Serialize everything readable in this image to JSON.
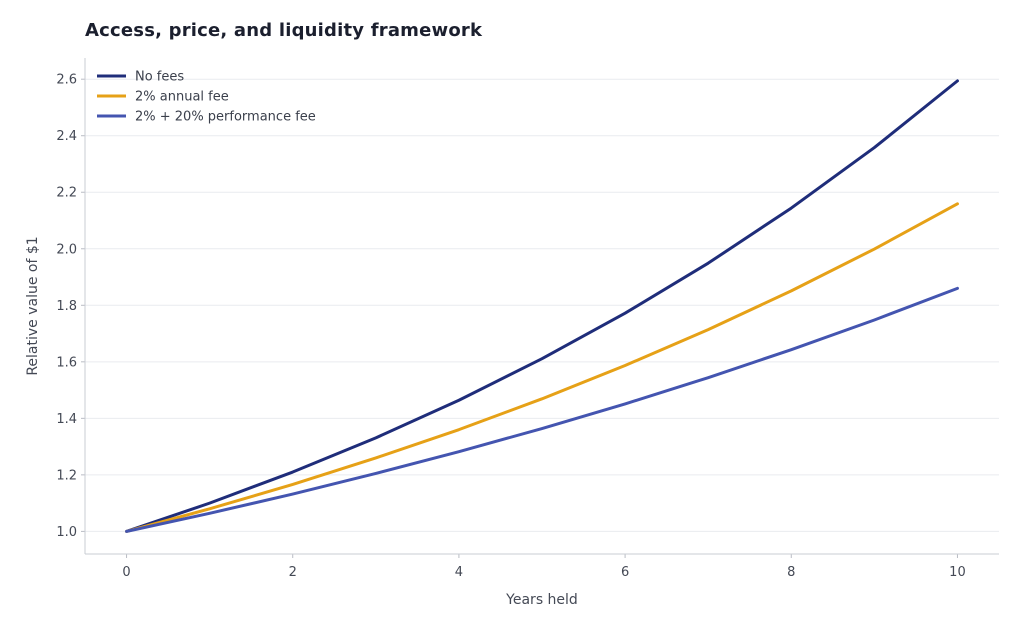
{
  "chart_data": {
    "type": "line",
    "title": "Access, price, and liquidity framework",
    "xlabel": "Years held",
    "ylabel": "Relative value of $1",
    "x": [
      0,
      1,
      2,
      3,
      4,
      5,
      6,
      7,
      8,
      9,
      10
    ],
    "xlim": [
      -0.5,
      10.5
    ],
    "ylim": [
      0.92,
      2.675
    ],
    "xticks": [
      0,
      2,
      4,
      6,
      8,
      10
    ],
    "xtick_labels": [
      "0",
      "2",
      "4",
      "6",
      "8",
      "10"
    ],
    "yticks": [
      1.0,
      1.2,
      1.4,
      1.6,
      1.8,
      2.0,
      2.2,
      2.4,
      2.6
    ],
    "ytick_labels": [
      "1.0",
      "1.2",
      "1.4",
      "1.6",
      "1.8",
      "2.0",
      "2.2",
      "2.4",
      "2.6"
    ],
    "grid": "horizontal",
    "legend_position": "top-left",
    "series": [
      {
        "name": "No fees",
        "color": "#1f2d7a",
        "values": [
          1.0,
          1.1,
          1.21,
          1.331,
          1.464,
          1.611,
          1.772,
          1.949,
          2.144,
          2.358,
          2.594
        ]
      },
      {
        "name": "2% annual fee",
        "color": "#e6a117",
        "values": [
          1.0,
          1.08,
          1.166,
          1.26,
          1.36,
          1.469,
          1.587,
          1.714,
          1.851,
          1.999,
          2.159
        ]
      },
      {
        "name": "2% + 20% performance fee",
        "color": "#4455b0",
        "values": [
          1.0,
          1.064,
          1.132,
          1.205,
          1.282,
          1.364,
          1.451,
          1.544,
          1.643,
          1.748,
          1.86
        ]
      }
    ]
  }
}
